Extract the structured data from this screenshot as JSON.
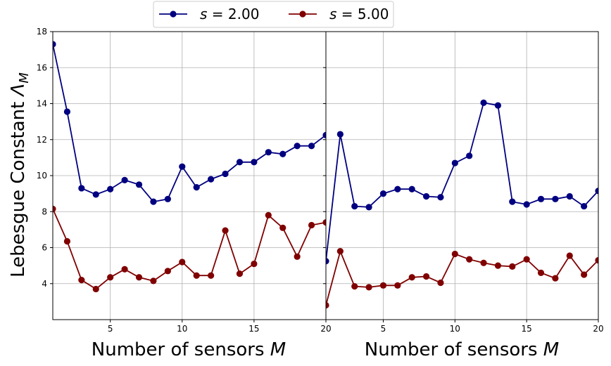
{
  "chart_data": [
    {
      "type": "line",
      "panel": "left",
      "xlabel": "Number of sensors M",
      "ylabel": "Lebesgue Constant Λ_M",
      "xlim": [
        1,
        20
      ],
      "ylim": [
        2,
        18
      ],
      "xticks": [
        5,
        10,
        15,
        20
      ],
      "yticks": [
        4,
        6,
        8,
        10,
        12,
        14,
        16,
        18
      ],
      "grid": true,
      "x": [
        1,
        2,
        3,
        4,
        5,
        6,
        7,
        8,
        9,
        10,
        11,
        12,
        13,
        14,
        15,
        16,
        17,
        18,
        19,
        20
      ],
      "series": [
        {
          "name": "s = 2.00",
          "color": "#000080",
          "values": [
            17.3,
            13.55,
            9.3,
            8.95,
            9.25,
            9.75,
            9.5,
            8.55,
            8.7,
            10.5,
            9.35,
            9.8,
            10.1,
            10.75,
            10.75,
            11.3,
            11.2,
            11.65,
            11.65,
            12.25
          ]
        },
        {
          "name": "s = 5.00",
          "color": "#800000",
          "values": [
            8.15,
            6.35,
            4.2,
            3.7,
            4.35,
            4.8,
            4.35,
            4.15,
            4.7,
            5.2,
            4.45,
            4.45,
            6.95,
            4.55,
            5.1,
            7.8,
            7.1,
            5.5,
            7.25,
            7.4
          ]
        }
      ]
    },
    {
      "type": "line",
      "panel": "right",
      "xlabel": "Number of sensors M",
      "xlim": [
        1,
        20
      ],
      "ylim": [
        2,
        18
      ],
      "xticks": [
        5,
        10,
        15,
        20
      ],
      "grid": true,
      "x": [
        1,
        2,
        3,
        4,
        5,
        6,
        7,
        8,
        9,
        10,
        11,
        12,
        13,
        14,
        15,
        16,
        17,
        18,
        19,
        20
      ],
      "series": [
        {
          "name": "s = 2.00",
          "color": "#000080",
          "values": [
            5.25,
            12.3,
            8.3,
            8.25,
            9.0,
            9.25,
            9.25,
            8.85,
            8.8,
            10.7,
            11.1,
            14.05,
            13.9,
            8.55,
            8.4,
            8.7,
            8.7,
            8.85,
            8.3,
            9.15
          ]
        },
        {
          "name": "s = 5.00",
          "color": "#800000",
          "values": [
            2.8,
            5.8,
            3.85,
            3.8,
            3.9,
            3.9,
            4.35,
            4.4,
            4.05,
            5.65,
            5.35,
            5.15,
            5.0,
            4.95,
            5.35,
            4.6,
            4.3,
            5.55,
            4.5,
            5.3
          ]
        }
      ]
    }
  ],
  "legend": {
    "placement": "top-center",
    "entries": [
      {
        "label_var": "s",
        "label_value": "= 2.00",
        "color": "#000080"
      },
      {
        "label_var": "s",
        "label_value": "= 5.00",
        "color": "#800000"
      }
    ]
  }
}
